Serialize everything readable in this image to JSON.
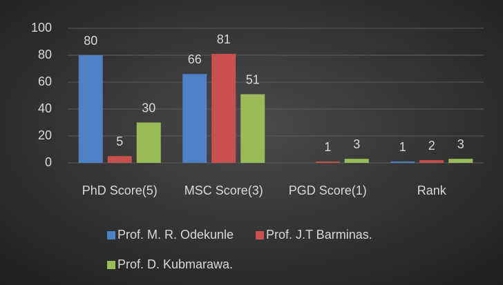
{
  "chart_data": {
    "type": "bar",
    "categories": [
      "PhD Score(5)",
      "MSC Score(3)",
      "PGD Score(1)",
      "Rank"
    ],
    "series": [
      {
        "name": "Prof. M. R. Odekunle",
        "color": "#4f81c9",
        "values": [
          80,
          66,
          null,
          1
        ]
      },
      {
        "name": "Prof. J.T Barminas.",
        "color": "#c9504d",
        "values": [
          5,
          81,
          1,
          2
        ]
      },
      {
        "name": "Prof. D. Kubmarawa.",
        "color": "#9bbb59",
        "values": [
          30,
          51,
          3,
          3
        ]
      }
    ],
    "ylim": [
      0,
      100
    ],
    "yticks": [
      0,
      20,
      40,
      60,
      80,
      100
    ],
    "grid": true
  }
}
